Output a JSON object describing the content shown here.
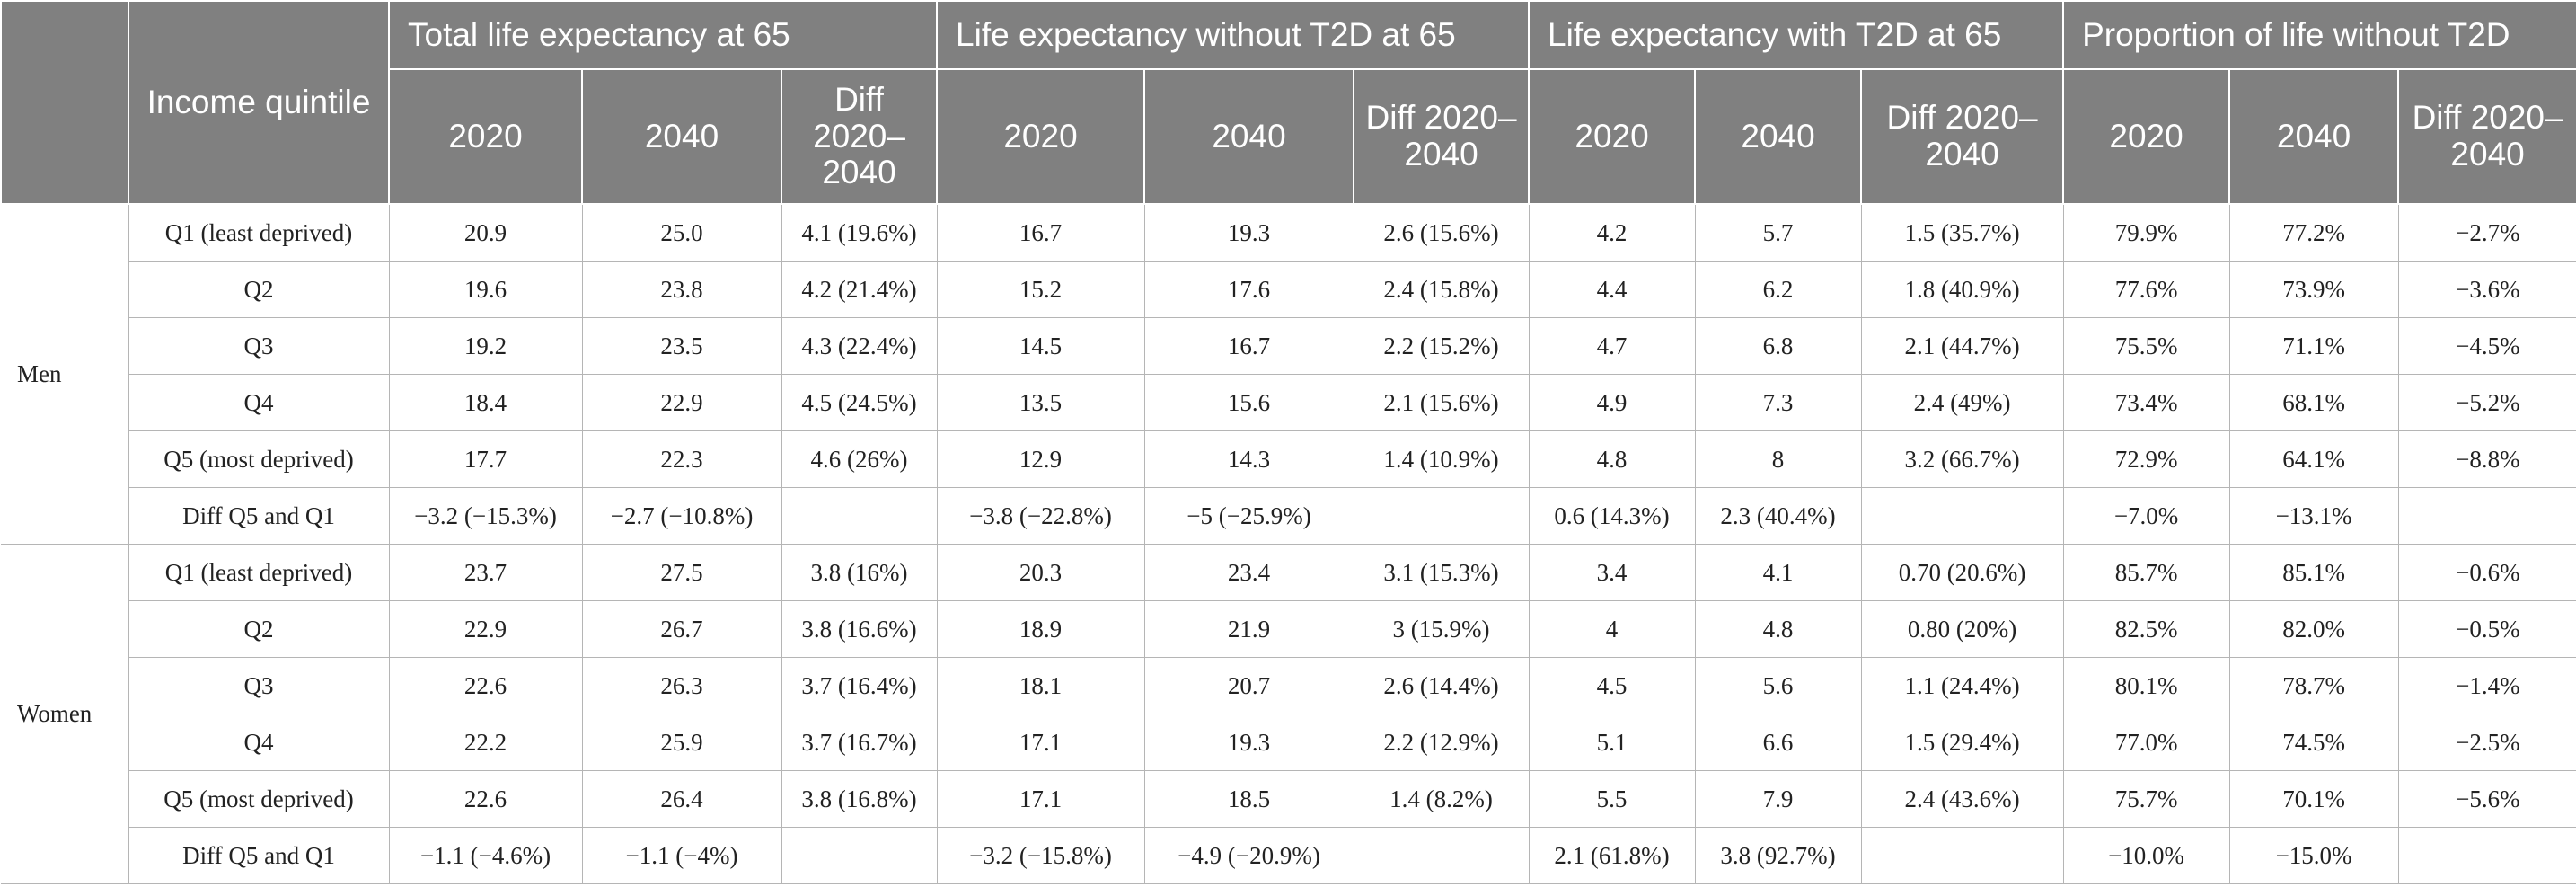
{
  "header": {
    "income_quintile": "Income quintile",
    "groups": [
      "Total life expectancy at 65",
      "Life expectancy without T2D at 65",
      "Life expectancy with T2D at 65",
      "Proportion of life without T2D"
    ],
    "year_2020": "2020",
    "year_2040": "2040",
    "diff": "Diff 2020–2040"
  },
  "sections": [
    {
      "sex": "Men",
      "rows": [
        {
          "label": "Q1 (least deprived)",
          "values": [
            "20.9",
            "25.0",
            "4.1 (19.6%)",
            "16.7",
            "19.3",
            "2.6 (15.6%)",
            "4.2",
            "5.7",
            "1.5 (35.7%)",
            "79.9%",
            "77.2%",
            "−2.7%"
          ]
        },
        {
          "label": "Q2",
          "values": [
            "19.6",
            "23.8",
            "4.2 (21.4%)",
            "15.2",
            "17.6",
            "2.4 (15.8%)",
            "4.4",
            "6.2",
            "1.8 (40.9%)",
            "77.6%",
            "73.9%",
            "−3.6%"
          ]
        },
        {
          "label": "Q3",
          "values": [
            "19.2",
            "23.5",
            "4.3 (22.4%)",
            "14.5",
            "16.7",
            "2.2 (15.2%)",
            "4.7",
            "6.8",
            "2.1 (44.7%)",
            "75.5%",
            "71.1%",
            "−4.5%"
          ]
        },
        {
          "label": "Q4",
          "values": [
            "18.4",
            "22.9",
            "4.5 (24.5%)",
            "13.5",
            "15.6",
            "2.1 (15.6%)",
            "4.9",
            "7.3",
            "2.4 (49%)",
            "73.4%",
            "68.1%",
            "−5.2%"
          ]
        },
        {
          "label": "Q5 (most deprived)",
          "values": [
            "17.7",
            "22.3",
            "4.6 (26%)",
            "12.9",
            "14.3",
            "1.4 (10.9%)",
            "4.8",
            "8",
            "3.2 (66.7%)",
            "72.9%",
            "64.1%",
            "−8.8%"
          ]
        },
        {
          "label": "Diff Q5 and Q1",
          "values": [
            "−3.2 (−15.3%)",
            "−2.7 (−10.8%)",
            "",
            "−3.8 (−22.8%)",
            "−5 (−25.9%)",
            "",
            "0.6 (14.3%)",
            "2.3 (40.4%)",
            "",
            "−7.0%",
            "−13.1%",
            ""
          ]
        }
      ]
    },
    {
      "sex": "Women",
      "rows": [
        {
          "label": "Q1 (least deprived)",
          "values": [
            "23.7",
            "27.5",
            "3.8 (16%)",
            "20.3",
            "23.4",
            "3.1 (15.3%)",
            "3.4",
            "4.1",
            "0.70 (20.6%)",
            "85.7%",
            "85.1%",
            "−0.6%"
          ]
        },
        {
          "label": "Q2",
          "values": [
            "22.9",
            "26.7",
            "3.8 (16.6%)",
            "18.9",
            "21.9",
            "3 (15.9%)",
            "4",
            "4.8",
            "0.80 (20%)",
            "82.5%",
            "82.0%",
            "−0.5%"
          ]
        },
        {
          "label": "Q3",
          "values": [
            "22.6",
            "26.3",
            "3.7 (16.4%)",
            "18.1",
            "20.7",
            "2.6 (14.4%)",
            "4.5",
            "5.6",
            "1.1 (24.4%)",
            "80.1%",
            "78.7%",
            "−1.4%"
          ]
        },
        {
          "label": "Q4",
          "values": [
            "22.2",
            "25.9",
            "3.7 (16.7%)",
            "17.1",
            "19.3",
            "2.2 (12.9%)",
            "5.1",
            "6.6",
            "1.5 (29.4%)",
            "77.0%",
            "74.5%",
            "−2.5%"
          ]
        },
        {
          "label": "Q5 (most deprived)",
          "values": [
            "22.6",
            "26.4",
            "3.8 (16.8%)",
            "17.1",
            "18.5",
            "1.4 (8.2%)",
            "5.5",
            "7.9",
            "2.4 (43.6%)",
            "75.7%",
            "70.1%",
            "−5.6%"
          ]
        },
        {
          "label": "Diff Q5 and Q1",
          "values": [
            "−1.1 (−4.6%)",
            "−1.1 (−4%)",
            "",
            "−3.2 (−15.8%)",
            "−4.9 (−20.9%)",
            "",
            "2.1 (61.8%)",
            "3.8 (92.7%)",
            "",
            "−10.0%",
            "−15.0%",
            ""
          ]
        }
      ]
    }
  ]
}
